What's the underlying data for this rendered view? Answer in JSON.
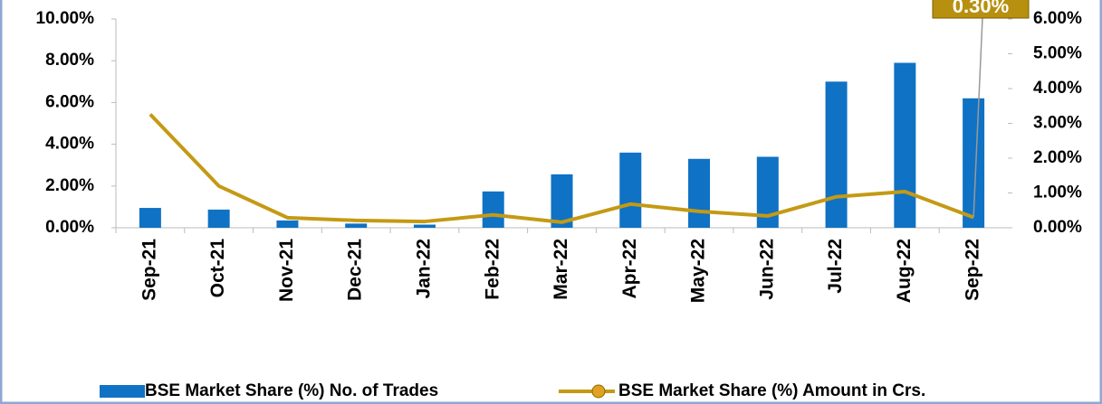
{
  "chart_data": {
    "type": "bar_line",
    "categories": [
      "Sep-21",
      "Oct-21",
      "Nov-21",
      "Dec-21",
      "Jan-22",
      "Feb-22",
      "Mar-22",
      "Apr-22",
      "May-22",
      "Jun-22",
      "Jul-22",
      "Aug-22",
      "Sep-22"
    ],
    "series": [
      {
        "name": "BSE Market Share (%) No. of Trades",
        "type": "bar",
        "color": "#0f72c4",
        "values": [
          0.95,
          0.87,
          0.35,
          0.2,
          0.15,
          1.74,
          2.56,
          3.6,
          3.3,
          3.4,
          7.0,
          7.9,
          6.2
        ]
      },
      {
        "name": "BSE Market Share (%) Amount in Crs.",
        "type": "line",
        "axis": "y2",
        "color": "#c49a14",
        "values": [
          3.26,
          1.2,
          0.29,
          0.21,
          0.18,
          0.37,
          0.16,
          0.68,
          0.47,
          0.34,
          0.89,
          1.04,
          0.3
        ],
        "value_labels": [
          null,
          null,
          null,
          null,
          null,
          null,
          null,
          null,
          null,
          null,
          null,
          null,
          "0.30%"
        ]
      }
    ],
    "ylim": [
      0,
      10
    ],
    "yticks": [
      {
        "value": 0,
        "label": "0.00%"
      },
      {
        "value": 2,
        "label": "2.00%"
      },
      {
        "value": 4,
        "label": "4.00%"
      },
      {
        "value": 6,
        "label": "6.00%"
      },
      {
        "value": 8,
        "label": "8.00%"
      },
      {
        "value": 10,
        "label": "10.00%"
      }
    ],
    "y2lim": [
      0,
      6
    ],
    "y2ticks": [
      {
        "value": 0,
        "label": "0.00%"
      },
      {
        "value": 1,
        "label": "1.00%"
      },
      {
        "value": 2,
        "label": "2.00%"
      },
      {
        "value": 3,
        "label": "3.00%"
      },
      {
        "value": 4,
        "label": "4.00%"
      },
      {
        "value": 5,
        "label": "5.00%"
      },
      {
        "value": 6,
        "label": "6.00%"
      }
    ],
    "grid": false,
    "legend": "bottom"
  }
}
